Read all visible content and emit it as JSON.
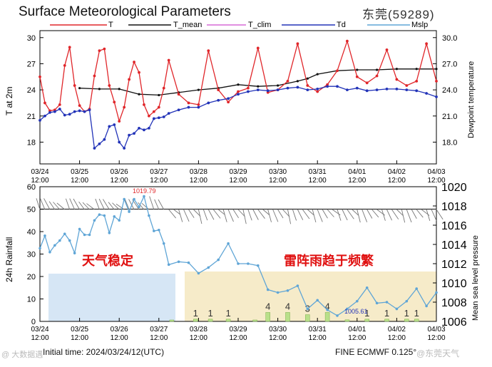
{
  "header": {
    "title": "Surface Meteorological Parameters",
    "station": "东莞(59289)"
  },
  "footer": {
    "initial_time": "Initial time: 2024/03/24/12(UTC)",
    "model": "FINE ECMWF 0.125°",
    "watermark_left": "@ 大数据遇",
    "watermark_right": "@东莞天气"
  },
  "colors": {
    "T": "#e0262a",
    "T_mean": "#111111",
    "T_clim": "#d66ad6",
    "Td": "#2233b8",
    "Mslp": "#5fa5d6",
    "stable_band": "#d6e6f5",
    "thunder_band": "#f6ebc9",
    "rain_bar": "#b9e08a"
  },
  "chart_data": [
    {
      "type": "line",
      "title": "Surface Meteorological Parameters",
      "ylabel": "T at 2m",
      "ylabel_right": "Dewpoint temperature",
      "ylim": [
        15.5,
        30.8
      ],
      "yticks": [
        18,
        21,
        24,
        27,
        30
      ],
      "yticks_right": [
        "18.0",
        "21.0",
        "24.0",
        "27.0",
        "30.0"
      ],
      "x_range": [
        0,
        40
      ],
      "x_tick_labels": [
        [
          "03/24",
          "12:00"
        ],
        [
          "03/25",
          "12:00"
        ],
        [
          "03/26",
          "12:00"
        ],
        [
          "03/27",
          "12:00"
        ],
        [
          "03/28",
          "12:00"
        ],
        [
          "03/29",
          "12:00"
        ],
        [
          "03/30",
          "12:00"
        ],
        [
          "03/31",
          "12:00"
        ],
        [
          "04/01",
          "12:00"
        ],
        [
          "04/02",
          "12:00"
        ],
        [
          "04/03",
          "12:00"
        ]
      ],
      "legend": [
        "T",
        "T_mean",
        "T_clim",
        "Td",
        "Mslp"
      ],
      "series": [
        {
          "name": "T",
          "x": [
            0,
            0.5,
            1,
            1.5,
            2,
            2.5,
            3,
            3.5,
            4,
            4.5,
            5,
            5.5,
            6,
            6.5,
            7,
            7.5,
            8,
            8.5,
            9,
            9.5,
            10,
            10.5,
            11,
            11.5,
            12,
            12.5,
            13,
            14,
            15,
            16,
            17,
            18,
            19,
            20,
            21,
            22,
            23,
            24,
            25,
            26,
            27,
            28,
            29,
            30,
            31,
            32,
            33,
            34,
            35,
            36,
            37,
            38,
            39,
            40
          ],
          "values": [
            25.5,
            22.5,
            21.6,
            21.7,
            22.3,
            26.8,
            28.9,
            24.5,
            22.2,
            21.5,
            21.8,
            25.6,
            28.5,
            28.7,
            24.5,
            22.6,
            20.4,
            22.0,
            25.2,
            27.2,
            26.0,
            22.3,
            21.0,
            21.5,
            22.0,
            24.2,
            27.4,
            23.5,
            22.5,
            22.3,
            28.5,
            24.0,
            22.6,
            23.8,
            24.2,
            28.8,
            23.7,
            24.0,
            25.0,
            29.3,
            24.5,
            23.8,
            24.6,
            26.2,
            29.6,
            25.5,
            24.8,
            25.6,
            28.6,
            25.2,
            24.5,
            25.0,
            29.3,
            25.0
          ]
        },
        {
          "name": "T_mean",
          "x": [
            4,
            6,
            8,
            10,
            12,
            14,
            16,
            18,
            20,
            22,
            24,
            26,
            27,
            28,
            30,
            32,
            34,
            36,
            38,
            40
          ],
          "values": [
            24.2,
            24.1,
            24.1,
            23.5,
            23.4,
            23.7,
            24.0,
            24.2,
            24.6,
            24.4,
            24.5,
            25.0,
            25.3,
            25.8,
            26.2,
            26.3,
            26.3,
            26.4,
            26.4,
            26.4
          ]
        },
        {
          "name": "Td",
          "x": [
            0,
            0.5,
            1,
            1.5,
            2,
            2.5,
            3,
            3.5,
            4,
            4.5,
            5,
            5.5,
            6,
            6.5,
            7,
            7.5,
            8,
            8.5,
            9,
            9.5,
            10,
            10.5,
            11,
            11.5,
            12,
            12.5,
            13,
            14,
            15,
            16,
            17,
            18,
            19,
            20,
            21,
            22,
            23,
            24,
            25,
            26,
            27,
            28,
            29,
            30,
            31,
            32,
            33,
            34,
            35,
            36,
            37,
            38,
            39,
            40
          ],
          "values": [
            20.5,
            21.0,
            21.4,
            21.5,
            21.8,
            21.1,
            21.2,
            21.5,
            21.6,
            21.5,
            21.7,
            17.3,
            17.8,
            18.3,
            19.8,
            20.0,
            18.0,
            17.3,
            18.8,
            19.0,
            19.6,
            19.4,
            19.6,
            20.7,
            20.8,
            20.9,
            21.3,
            21.7,
            22.0,
            22.0,
            22.5,
            22.8,
            23.0,
            23.5,
            23.8,
            24.0,
            23.9,
            24.0,
            24.2,
            24.3,
            24.0,
            24.1,
            24.4,
            24.4,
            24.0,
            24.2,
            23.9,
            24.0,
            24.1,
            24.1,
            24.0,
            23.9,
            23.6,
            23.2
          ]
        }
      ],
      "annotations": []
    },
    {
      "type": "bar",
      "ylabel": "24h Rainfall",
      "ylabel_right": "Mean sea level pressure",
      "ylim": [
        0,
        60
      ],
      "yticks": [
        0,
        10,
        20,
        30,
        40,
        50,
        60
      ],
      "ylim_right": [
        1006,
        1020
      ],
      "yticks_right": [
        1006,
        1008,
        1010,
        1012,
        1014,
        1016,
        1018,
        1020
      ],
      "x_range": [
        0,
        40
      ],
      "x_tick_labels": [
        [
          "03/24",
          "12:00"
        ],
        [
          "03/25",
          "12:00"
        ],
        [
          "03/26",
          "12:00"
        ],
        [
          "03/27",
          "12:00"
        ],
        [
          "03/28",
          "12:00"
        ],
        [
          "03/29",
          "12:00"
        ],
        [
          "03/30",
          "12:00"
        ],
        [
          "03/31",
          "12:00"
        ],
        [
          "04/01",
          "12:00"
        ],
        [
          "04/02",
          "12:00"
        ],
        [
          "04/03",
          "12:00"
        ]
      ],
      "rain": {
        "x": [
          13.3,
          15.7,
          17.2,
          19,
          21.7,
          23,
          25,
          27,
          29,
          31,
          33,
          35,
          37,
          38
        ],
        "values": [
          0.5,
          1,
          1,
          1,
          0.6,
          4,
          4,
          3,
          4,
          0.7,
          1,
          1,
          1,
          1
        ],
        "labels": [
          "",
          "1",
          "1",
          "1",
          "",
          "4",
          "4",
          "3",
          "4",
          "",
          "1",
          "1",
          "1",
          "1"
        ]
      },
      "mslp": {
        "x": [
          0,
          0.5,
          1,
          1.5,
          2,
          2.5,
          3,
          3.5,
          4,
          4.5,
          5,
          5.5,
          6,
          6.5,
          7,
          7.5,
          8,
          8.5,
          9,
          9.5,
          10,
          10.5,
          11,
          11.5,
          12,
          12.5,
          13,
          14,
          15,
          16,
          17,
          18,
          19,
          20,
          21,
          22,
          23,
          24,
          25,
          26,
          27,
          28,
          29,
          30,
          31,
          32,
          33,
          34,
          35,
          36,
          37,
          38,
          39,
          40
        ],
        "values": [
          1013.6,
          1014.9,
          1013.2,
          1013.9,
          1014.4,
          1015.1,
          1014.4,
          1013.1,
          1015.6,
          1015.0,
          1015.0,
          1016.5,
          1017.1,
          1017.0,
          1015.2,
          1016.9,
          1016.5,
          1018.7,
          1017.4,
          1018.7,
          1017.9,
          1019.0,
          1017.0,
          1015.4,
          1015.5,
          1014.1,
          1011.9,
          1012.2,
          1012.1,
          1011.0,
          1011.6,
          1012.4,
          1014.1,
          1012.0,
          1012.0,
          1011.8,
          1009.3,
          1009.0,
          1009.2,
          1009.7,
          1007.3,
          1008.2,
          1007.2,
          1006.6,
          1007.3,
          1008.1,
          1009.5,
          1007.9,
          1008.0,
          1007.3,
          1008.1,
          1009.4,
          1007.6,
          1009.0
        ],
        "max_label": "1019.79",
        "min_label": "1005.61"
      },
      "reference_line": 50,
      "annotations": [
        {
          "text": "天气稳定",
          "band": [
            0.7,
            13.7
          ]
        },
        {
          "text": "雷阵雨趋于频繁",
          "band": [
            14.6,
            40
          ]
        }
      ]
    }
  ]
}
